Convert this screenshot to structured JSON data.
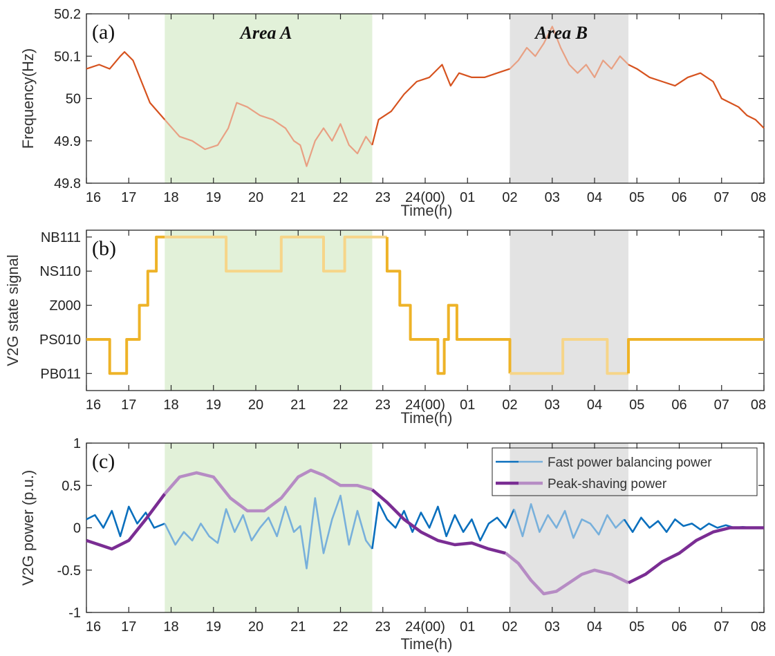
{
  "chart_data": [
    {
      "type": "line",
      "panel_label": "(a)",
      "xlabel": "Time(h)",
      "ylabel": "Frequency(Hz)",
      "xlim": [
        0,
        16
      ],
      "ylim": [
        49.8,
        50.2
      ],
      "xticks": [
        "16",
        "17",
        "18",
        "19",
        "20",
        "21",
        "22",
        "23",
        "24(00)",
        "01",
        "02",
        "03",
        "04",
        "05",
        "06",
        "07",
        "08"
      ],
      "yticks": [
        "49.8",
        "49.9",
        "50",
        "50.1",
        "50.2"
      ],
      "highlight_areas": [
        {
          "label": "Area A",
          "x_range": [
            1.85,
            6.75
          ],
          "color": "#e2f1d9"
        },
        {
          "label": "Area B",
          "x_range": [
            10.0,
            12.8
          ],
          "color": "#e3e3e3"
        }
      ],
      "series": [
        {
          "color": "#d6521e",
          "x": [
            0,
            0.3,
            0.55,
            0.8,
            0.9,
            1.1,
            1.3,
            1.5,
            1.85,
            2.2,
            2.5,
            2.8,
            3.1,
            3.35,
            3.55,
            3.8,
            4.1,
            4.4,
            4.7,
            4.9,
            5.05,
            5.2,
            5.4,
            5.6,
            5.8,
            6.0,
            6.2,
            6.4,
            6.6,
            6.75,
            6.9,
            7.2,
            7.5,
            7.8,
            8.1,
            8.4,
            8.6,
            8.8,
            9.1,
            9.4,
            9.7,
            10.0,
            10.2,
            10.4,
            10.6,
            10.8,
            11.0,
            11.2,
            11.4,
            11.6,
            11.8,
            12.0,
            12.2,
            12.4,
            12.6,
            12.8,
            13.0,
            13.3,
            13.6,
            13.9,
            14.2,
            14.5,
            14.8,
            15.0,
            15.2,
            15.4,
            15.6,
            15.8,
            16.0
          ],
          "y": [
            50.07,
            50.08,
            50.07,
            50.1,
            50.11,
            50.09,
            50.04,
            49.99,
            49.95,
            49.91,
            49.9,
            49.88,
            49.89,
            49.93,
            49.99,
            49.98,
            49.96,
            49.95,
            49.93,
            49.9,
            49.89,
            49.84,
            49.9,
            49.93,
            49.9,
            49.94,
            49.89,
            49.87,
            49.91,
            49.89,
            49.95,
            49.97,
            50.01,
            50.04,
            50.05,
            50.08,
            50.03,
            50.06,
            50.05,
            50.05,
            50.06,
            50.07,
            50.09,
            50.12,
            50.1,
            50.13,
            50.17,
            50.12,
            50.08,
            50.06,
            50.08,
            50.05,
            50.09,
            50.07,
            50.1,
            50.08,
            50.07,
            50.05,
            50.04,
            50.03,
            50.05,
            50.06,
            50.04,
            50.0,
            49.99,
            49.98,
            49.96,
            49.95,
            49.93
          ]
        }
      ]
    },
    {
      "type": "line",
      "panel_label": "(b)",
      "xlabel": "Time(h)",
      "ylabel": "V2G state signal",
      "xlim": [
        0,
        16
      ],
      "ylim": [
        -0.5,
        4.2
      ],
      "xticks": [
        "16",
        "17",
        "18",
        "19",
        "20",
        "21",
        "22",
        "23",
        "24(00)",
        "01",
        "02",
        "03",
        "04",
        "05",
        "06",
        "07",
        "08"
      ],
      "yticks": [
        "PB011",
        "PS010",
        "Z000",
        "NS110",
        "NB111"
      ],
      "highlight_areas": [
        {
          "label": "",
          "x_range": [
            1.85,
            6.75
          ],
          "color": "#e2f1d9"
        },
        {
          "label": "",
          "x_range": [
            10.0,
            12.8
          ],
          "color": "#e3e3e3"
        }
      ],
      "series": [
        {
          "color": "#eeb328",
          "step": true,
          "x": [
            0,
            0.55,
            0.75,
            0.95,
            1.25,
            1.45,
            1.65,
            1.85,
            3.3,
            4.6,
            5.6,
            6.1,
            6.3,
            7.1,
            7.4,
            7.65,
            8.3,
            8.45,
            8.55,
            8.75,
            8.95,
            10.0,
            11.25,
            12.3,
            12.8,
            16.0
          ],
          "y": [
            1,
            0,
            0,
            1,
            2,
            3,
            4,
            4,
            3,
            4,
            3,
            4,
            4,
            3,
            2,
            1,
            0,
            1,
            2,
            1,
            1,
            0,
            1,
            0,
            1,
            1
          ]
        }
      ]
    },
    {
      "type": "line",
      "panel_label": "(c)",
      "xlabel": "Time(h)",
      "ylabel": "V2G power (p.u.)",
      "xlim": [
        0,
        16
      ],
      "ylim": [
        -1,
        1
      ],
      "xticks": [
        "16",
        "17",
        "18",
        "19",
        "20",
        "21",
        "22",
        "23",
        "24(00)",
        "01",
        "02",
        "03",
        "04",
        "05",
        "06",
        "07",
        "08"
      ],
      "yticks": [
        "-1",
        "-0.5",
        "0",
        "0.5",
        "1"
      ],
      "legend_position": "top-right",
      "highlight_areas": [
        {
          "label": "",
          "x_range": [
            1.85,
            6.75
          ],
          "color": "#e2f1d9"
        },
        {
          "label": "",
          "x_range": [
            10.0,
            12.8
          ],
          "color": "#e3e3e3"
        }
      ],
      "series": [
        {
          "name": "Fast power balancing power",
          "color": "#0a6fbd",
          "x": [
            0,
            0.2,
            0.4,
            0.6,
            0.8,
            1.0,
            1.2,
            1.4,
            1.6,
            1.85,
            2.1,
            2.3,
            2.5,
            2.7,
            2.9,
            3.1,
            3.3,
            3.5,
            3.7,
            3.9,
            4.1,
            4.3,
            4.5,
            4.7,
            4.9,
            5.05,
            5.2,
            5.4,
            5.6,
            5.8,
            6.0,
            6.2,
            6.4,
            6.6,
            6.75,
            6.9,
            7.1,
            7.3,
            7.5,
            7.7,
            7.9,
            8.1,
            8.3,
            8.5,
            8.7,
            8.9,
            9.1,
            9.3,
            9.5,
            9.7,
            9.9,
            10.1,
            10.3,
            10.5,
            10.7,
            10.9,
            11.1,
            11.3,
            11.5,
            11.7,
            11.9,
            12.1,
            12.3,
            12.5,
            12.7,
            12.9,
            13.1,
            13.3,
            13.5,
            13.7,
            13.9,
            14.1,
            14.3,
            14.5,
            14.7,
            14.9,
            15.1,
            15.3,
            15.5,
            15.7,
            16.0
          ],
          "y": [
            0.1,
            0.15,
            0.0,
            0.2,
            -0.1,
            0.25,
            0.05,
            0.18,
            0.0,
            0.05,
            -0.2,
            -0.05,
            -0.15,
            0.05,
            -0.1,
            -0.18,
            0.22,
            -0.05,
            0.15,
            -0.15,
            0.0,
            0.12,
            -0.1,
            0.25,
            -0.05,
            0.02,
            -0.48,
            0.35,
            -0.3,
            0.1,
            0.38,
            -0.2,
            0.2,
            -0.15,
            -0.25,
            0.3,
            0.1,
            0.0,
            0.2,
            -0.05,
            0.18,
            0.0,
            0.25,
            -0.1,
            0.15,
            -0.05,
            0.1,
            -0.15,
            0.05,
            0.12,
            0.0,
            0.22,
            -0.1,
            0.28,
            -0.05,
            0.15,
            0.0,
            0.2,
            -0.12,
            0.1,
            0.05,
            -0.08,
            0.15,
            0.0,
            0.1,
            -0.05,
            0.12,
            0.0,
            0.08,
            -0.05,
            0.1,
            0.02,
            0.05,
            -0.02,
            0.05,
            0.0,
            0.03,
            0.0,
            0.01,
            0.0,
            0.0
          ]
        },
        {
          "name": "Peak-shaving power",
          "color": "#7a2d93",
          "x": [
            0,
            0.3,
            0.6,
            1.0,
            1.4,
            1.85,
            2.2,
            2.6,
            3.0,
            3.4,
            3.8,
            4.2,
            4.6,
            5.0,
            5.3,
            5.6,
            6.0,
            6.4,
            6.75,
            7.1,
            7.5,
            7.9,
            8.3,
            8.7,
            9.1,
            9.5,
            9.9,
            10.2,
            10.5,
            10.8,
            11.1,
            11.4,
            11.7,
            12.0,
            12.4,
            12.8,
            13.2,
            13.6,
            14.0,
            14.4,
            14.8,
            15.2,
            15.6,
            16.0
          ],
          "y": [
            -0.15,
            -0.2,
            -0.25,
            -0.15,
            0.1,
            0.4,
            0.6,
            0.65,
            0.6,
            0.35,
            0.2,
            0.2,
            0.35,
            0.6,
            0.68,
            0.62,
            0.5,
            0.5,
            0.45,
            0.3,
            0.1,
            -0.05,
            -0.15,
            -0.2,
            -0.18,
            -0.25,
            -0.3,
            -0.42,
            -0.62,
            -0.78,
            -0.75,
            -0.65,
            -0.55,
            -0.5,
            -0.55,
            -0.65,
            -0.55,
            -0.4,
            -0.3,
            -0.15,
            -0.05,
            0.0,
            0.0,
            0.0
          ]
        }
      ]
    }
  ]
}
